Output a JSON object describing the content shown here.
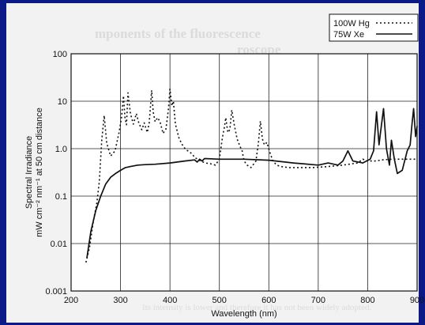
{
  "chart_data": {
    "type": "line",
    "ylabel": "Spectral Irradiance mW cm⁻² nm⁻¹ at 50 cm distance",
    "ylabel_lines": [
      "Spectral Irradiance",
      "mW cm⁻² nm⁻¹ at 50 cm distance"
    ],
    "xlabel": "Wavelength (nm)",
    "xlim": [
      200,
      900
    ],
    "ylim": [
      0.001,
      100
    ],
    "yscale": "log",
    "grid": true,
    "legend_position": "top-right",
    "x_ticks": [
      200,
      300,
      400,
      500,
      600,
      700,
      800,
      900
    ],
    "x_tick_labels": [
      "200",
      "300",
      "400",
      "500",
      "600",
      "700",
      "800",
      "900"
    ],
    "y_ticks": [
      0.001,
      0.01,
      0.1,
      1,
      10,
      100
    ],
    "y_tick_labels": [
      "0.001",
      "0.01",
      "0.1",
      "1.0",
      "10",
      "100"
    ],
    "series": [
      {
        "name": "100W Hg",
        "style": "dotted",
        "x": [
          230,
          237,
          245,
          252,
          257,
          262,
          267,
          272,
          280,
          289,
          297,
          302,
          306,
          309,
          312,
          315,
          320,
          326,
          332,
          337,
          343,
          348,
          354,
          358,
          363,
          366,
          370,
          375,
          380,
          386,
          392,
          397,
          400,
          404,
          407,
          411,
          414,
          418,
          424,
          432,
          440,
          446,
          450,
          456,
          462,
          472,
          482,
          492,
          500,
          506,
          510,
          513,
          517,
          521,
          525,
          530,
          536,
          542,
          546,
          550,
          556,
          564,
          574,
          579,
          583,
          587,
          591,
          596,
          602,
          608,
          616,
          624,
          640,
          660,
          690,
          720,
          750,
          780,
          790,
          800,
          815,
          830,
          850,
          870,
          900
        ],
        "y": [
          0.004,
          0.008,
          0.03,
          0.07,
          0.2,
          1.5,
          5,
          1.3,
          0.7,
          0.9,
          2.2,
          4.5,
          13,
          4.5,
          3.2,
          15,
          5.5,
          3.3,
          5.5,
          3.5,
          2.5,
          3.5,
          2.2,
          3.5,
          17,
          6,
          3.7,
          4.5,
          3.7,
          2.1,
          2.6,
          7,
          18,
          8,
          10,
          3.3,
          2.5,
          1.7,
          1.25,
          0.95,
          0.85,
          0.75,
          0.65,
          0.6,
          0.55,
          0.5,
          0.48,
          0.45,
          0.6,
          1.7,
          2.8,
          4.5,
          2.2,
          2.5,
          6.5,
          3.2,
          1.6,
          1.1,
          0.9,
          0.55,
          0.45,
          0.4,
          0.55,
          1.3,
          3.8,
          1.6,
          1.2,
          1.35,
          0.85,
          0.55,
          0.45,
          0.42,
          0.4,
          0.4,
          0.4,
          0.42,
          0.45,
          0.5,
          0.6,
          0.55,
          0.55,
          0.58,
          0.6,
          0.6,
          0.6
        ]
      },
      {
        "name": "75W Xe",
        "style": "solid",
        "x": [
          232,
          240,
          250,
          260,
          270,
          280,
          290,
          300,
          310,
          320,
          335,
          350,
          370,
          400,
          430,
          450,
          455,
          460,
          465,
          470,
          500,
          550,
          600,
          650,
          700,
          720,
          740,
          750,
          760,
          770,
          790,
          805,
          812,
          818,
          823,
          826,
          832,
          838,
          844,
          848,
          854,
          860,
          870,
          880,
          886,
          890,
          893,
          897,
          900
        ],
        "y": [
          0.005,
          0.018,
          0.05,
          0.1,
          0.18,
          0.25,
          0.3,
          0.35,
          0.4,
          0.42,
          0.45,
          0.46,
          0.47,
          0.5,
          0.55,
          0.58,
          0.52,
          0.6,
          0.55,
          0.62,
          0.6,
          0.6,
          0.57,
          0.5,
          0.45,
          0.5,
          0.45,
          0.55,
          0.9,
          0.55,
          0.5,
          0.6,
          0.9,
          6.0,
          1.2,
          2.2,
          7.0,
          1.0,
          0.45,
          1.5,
          0.6,
          0.3,
          0.35,
          0.9,
          1.2,
          3.5,
          7.0,
          1.8,
          3.0
        ]
      }
    ]
  }
}
